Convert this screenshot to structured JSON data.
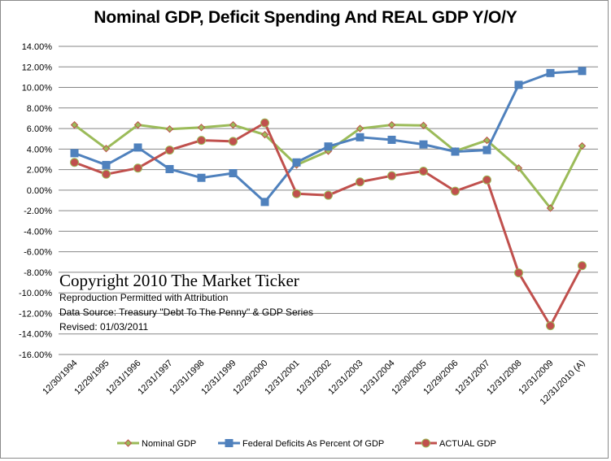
{
  "chart_data": {
    "type": "line",
    "title": "Nominal GDP, Deficit Spending And REAL GDP Y/O/Y",
    "xlabel": "",
    "ylabel": "",
    "ylim": [
      -16,
      14
    ],
    "y_tick_step": 2,
    "y_tick_labels": [
      "14.00%",
      "12.00%",
      "10.00%",
      "8.00%",
      "6.00%",
      "4.00%",
      "2.00%",
      "0.00%",
      "-2.00%",
      "-4.00%",
      "-6.00%",
      "-8.00%",
      "-10.00%",
      "-12.00%",
      "-14.00%",
      "-16.00%"
    ],
    "grid": true,
    "legend_position": "bottom",
    "categories": [
      "12/30/1994",
      "12/29/1995",
      "12/31/1996",
      "12/31/1997",
      "12/31/1998",
      "12/31/1999",
      "12/29/2000",
      "12/31/2001",
      "12/31/2002",
      "12/31/2003",
      "12/31/2004",
      "12/30/2005",
      "12/29/2006",
      "12/31/2007",
      "12/31/2008",
      "12/31/2009",
      "12/31/2010 (A)"
    ],
    "series": [
      {
        "name": "Nominal GDP",
        "color": "#9BBB59",
        "marker": "diamond",
        "marker_edge": "#C0504D",
        "values": [
          6.35,
          4.05,
          6.35,
          5.95,
          6.1,
          6.35,
          5.4,
          2.45,
          3.8,
          6.0,
          6.35,
          6.3,
          3.8,
          4.85,
          2.15,
          -1.75,
          4.3
        ]
      },
      {
        "name": "Federal Deficits As Percent Of GDP",
        "color": "#4F81BD",
        "marker": "square",
        "marker_edge": "#4F81BD",
        "values": [
          3.6,
          2.45,
          4.15,
          2.05,
          1.2,
          1.65,
          -1.15,
          2.7,
          4.25,
          5.15,
          4.9,
          4.45,
          3.75,
          3.9,
          10.25,
          11.4,
          11.6
        ]
      },
      {
        "name": "ACTUAL GDP",
        "color": "#C0504D",
        "marker": "circle",
        "marker_edge": "#9BBB59",
        "values": [
          2.7,
          1.55,
          2.15,
          3.9,
          4.85,
          4.75,
          6.55,
          -0.35,
          -0.5,
          0.8,
          1.4,
          1.85,
          -0.1,
          1.0,
          -8.05,
          -13.2,
          -7.35
        ]
      }
    ],
    "annotations": {
      "copyright": "Copyright 2010 The Market Ticker",
      "lines": [
        "Reproduction Permitted with Attribution",
        "Data Source:  Treasury \"Debt To The Penny\" & GDP Series",
        "Revised: 01/03/2011"
      ]
    }
  }
}
